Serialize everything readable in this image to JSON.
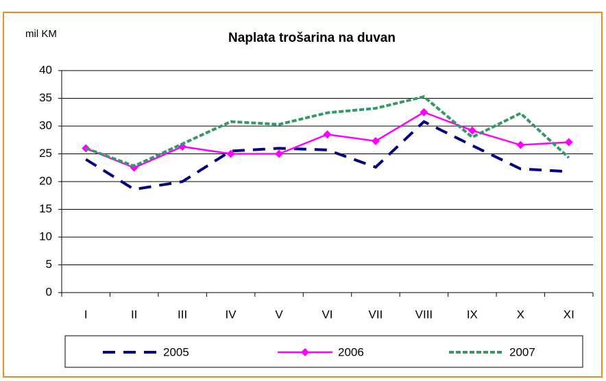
{
  "chart_data": {
    "type": "line",
    "title": "Naplata trošarina na duvan",
    "y_label": "mil KM",
    "categories": [
      "I",
      "II",
      "III",
      "IV",
      "V",
      "VI",
      "VII",
      "VIII",
      "IX",
      "X",
      "XI"
    ],
    "series": [
      {
        "name": "2005",
        "color": "#000080",
        "dash": "long",
        "marker": "none",
        "values": [
          24,
          18.6,
          20,
          25.5,
          26,
          25.7,
          22.6,
          30.8,
          26.5,
          22.3,
          21.8
        ]
      },
      {
        "name": "2006",
        "color": "#ff00ff",
        "dash": "none",
        "marker": "diamond",
        "values": [
          26,
          22.5,
          26.3,
          25,
          25,
          28.5,
          27.3,
          32.5,
          29.2,
          26.6,
          27.1
        ]
      },
      {
        "name": "2007",
        "color": "#339966",
        "dash": "short",
        "marker": "none",
        "values": [
          26,
          22.8,
          26.8,
          30.8,
          30.3,
          32.4,
          33.2,
          35.3,
          28,
          32.3,
          24.3
        ]
      }
    ],
    "ylim": [
      0,
      40
    ],
    "yticks": [
      0,
      5,
      10,
      15,
      20,
      25,
      30,
      35,
      40
    ],
    "grid": true,
    "legend": "bottom"
  }
}
